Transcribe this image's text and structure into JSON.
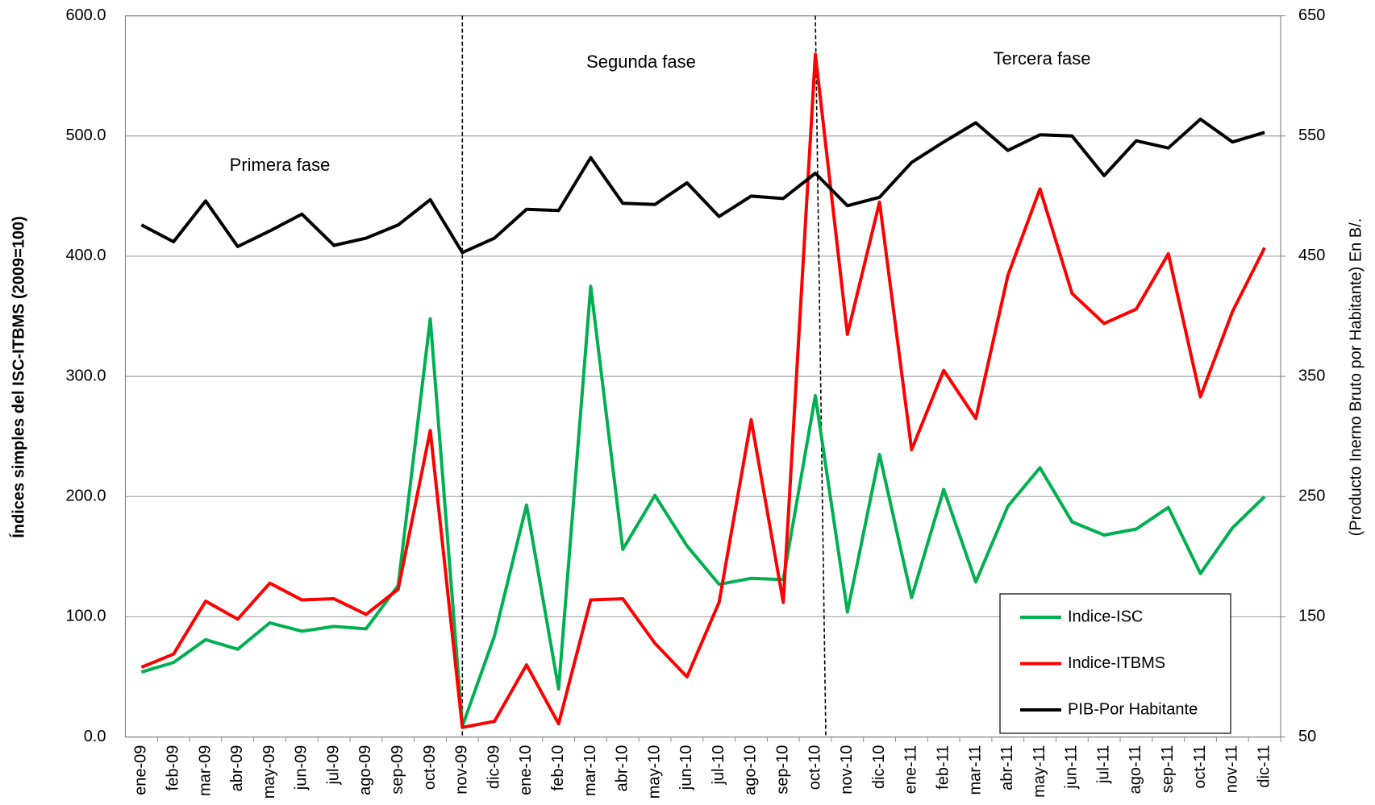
{
  "chart_data": {
    "type": "line",
    "y_label": "Índices simples del ISC-ITBMS (2009=100)",
    "y2_label": "(Producto Inerno Bruto por Habitante)  En B/.",
    "annotations": [
      "Primera fase",
      "Segunda fase",
      "Tercera fase"
    ],
    "phase_dividers": [
      "nov-09",
      "oct-10"
    ],
    "categories": [
      "ene-09",
      "feb-09",
      "mar-09",
      "abr-09",
      "may-09",
      "jun-09",
      "jul-09",
      "ago-09",
      "sep-09",
      "oct-09",
      "nov-09",
      "dic-09",
      "ene-10",
      "feb-10",
      "mar-10",
      "abr-10",
      "may-10",
      "jun-10",
      "jul-10",
      "ago-10",
      "sep-10",
      "oct-10",
      "nov-10",
      "dic-10",
      "ene-11",
      "feb-11",
      "mar-11",
      "abr-11",
      "may-11",
      "jun-11",
      "jul-11",
      "ago-11",
      "sep-11",
      "oct-11",
      "nov-11",
      "dic-11"
    ],
    "series": [
      {
        "name": "Indice-ISC",
        "color": "#00b050",
        "values": [
          54,
          62,
          81,
          73,
          95,
          88,
          92,
          90,
          126,
          348,
          9,
          84,
          193,
          40,
          375,
          156,
          201,
          159,
          127,
          132,
          131,
          284,
          104,
          235,
          116,
          206,
          129,
          192,
          224,
          179,
          168,
          173,
          191,
          136,
          174,
          200
        ]
      },
      {
        "name": "Indice-ITBMS",
        "color": "#ff0000",
        "values": [
          58,
          69,
          113,
          98,
          128,
          114,
          115,
          102,
          123,
          255,
          8,
          13,
          60,
          11,
          114,
          115,
          78,
          50,
          112,
          264,
          112,
          568,
          335,
          445,
          239,
          305,
          265,
          384,
          456,
          369,
          344,
          356,
          402,
          283,
          354,
          407
        ]
      },
      {
        "name": "PIB-Por Habitante",
        "color": "#000000",
        "axis": "y2",
        "values": [
          476,
          462,
          496,
          458,
          471,
          485,
          459,
          465,
          476,
          497,
          453,
          465,
          489,
          488,
          532,
          494,
          493,
          511,
          483,
          500,
          498,
          519,
          492,
          499,
          528,
          545,
          561,
          538,
          551,
          550,
          517,
          546,
          540,
          564,
          545,
          553
        ]
      }
    ],
    "ylim": [
      0,
      600
    ],
    "yticks": [
      {
        "value": 0,
        "label": "0.0"
      },
      {
        "value": 100,
        "label": "100.0"
      },
      {
        "value": 200,
        "label": "200.0"
      },
      {
        "value": 300,
        "label": "300.0"
      },
      {
        "value": 400,
        "label": "400.0"
      },
      {
        "value": 500,
        "label": "500.0"
      },
      {
        "value": 600,
        "label": "600.0"
      }
    ],
    "y2lim": [
      50,
      650
    ],
    "y2ticks": [
      50,
      150,
      250,
      350,
      450,
      550,
      650
    ],
    "grid": true
  }
}
